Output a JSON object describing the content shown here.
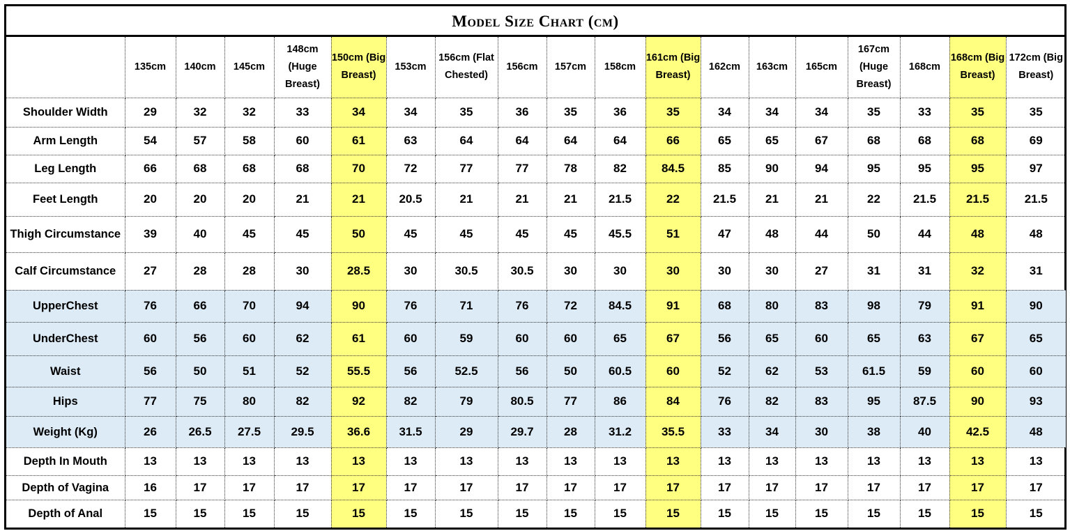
{
  "title": "Model Size Chart (cm)",
  "colors": {
    "highlight_column": "#FFFF80",
    "highlight_row": "#DDEBF7",
    "border": "#000000"
  },
  "highlighted_columns": [
    "150cm (Big Breast)",
    "161cm (Big Breast)",
    "168cm (Big Breast)"
  ],
  "columns": [
    {
      "label": "135cm",
      "highlight": false
    },
    {
      "label": "140cm",
      "highlight": false
    },
    {
      "label": "145cm",
      "highlight": false
    },
    {
      "label": "148cm (Huge Breast)",
      "highlight": false
    },
    {
      "label": "150cm (Big Breast)",
      "highlight": true
    },
    {
      "label": "153cm",
      "highlight": false
    },
    {
      "label": "156cm (Flat Chested)",
      "highlight": false
    },
    {
      "label": "156cm",
      "highlight": false
    },
    {
      "label": "157cm",
      "highlight": false
    },
    {
      "label": "158cm",
      "highlight": false
    },
    {
      "label": "161cm (Big Breast)",
      "highlight": true
    },
    {
      "label": "162cm",
      "highlight": false
    },
    {
      "label": "163cm",
      "highlight": false
    },
    {
      "label": "165cm",
      "highlight": false
    },
    {
      "label": "167cm (Huge Breast)",
      "highlight": false
    },
    {
      "label": "168cm",
      "highlight": false
    },
    {
      "label": "168cm (Big Breast)",
      "highlight": true
    },
    {
      "label": "172cm (Big Breast)",
      "highlight": false
    }
  ],
  "rows": [
    {
      "label": "Shoulder Width",
      "blue": false,
      "values": [
        "29",
        "32",
        "32",
        "33",
        "34",
        "34",
        "35",
        "36",
        "35",
        "36",
        "35",
        "34",
        "34",
        "34",
        "35",
        "33",
        "35",
        "35"
      ]
    },
    {
      "label": "Arm Length",
      "blue": false,
      "values": [
        "54",
        "57",
        "58",
        "60",
        "61",
        "63",
        "64",
        "64",
        "64",
        "64",
        "66",
        "65",
        "65",
        "67",
        "68",
        "68",
        "68",
        "69"
      ]
    },
    {
      "label": "Leg Length",
      "blue": false,
      "values": [
        "66",
        "68",
        "68",
        "68",
        "70",
        "72",
        "77",
        "77",
        "78",
        "82",
        "84.5",
        "85",
        "90",
        "94",
        "95",
        "95",
        "95",
        "97"
      ]
    },
    {
      "label": "Feet Length",
      "blue": false,
      "values": [
        "20",
        "20",
        "20",
        "21",
        "21",
        "20.5",
        "21",
        "21",
        "21",
        "21.5",
        "22",
        "21.5",
        "21",
        "21",
        "22",
        "21.5",
        "21.5",
        "21.5"
      ]
    },
    {
      "label": "Thigh Circumstance",
      "blue": false,
      "values": [
        "39",
        "40",
        "45",
        "45",
        "50",
        "45",
        "45",
        "45",
        "45",
        "45.5",
        "51",
        "47",
        "48",
        "44",
        "50",
        "44",
        "48",
        "48"
      ]
    },
    {
      "label": "Calf Circumstance",
      "blue": false,
      "values": [
        "27",
        "28",
        "28",
        "30",
        "28.5",
        "30",
        "30.5",
        "30.5",
        "30",
        "30",
        "30",
        "30",
        "30",
        "27",
        "31",
        "31",
        "32",
        "31"
      ]
    },
    {
      "label": "UpperChest",
      "blue": true,
      "values": [
        "76",
        "66",
        "70",
        "94",
        "90",
        "76",
        "71",
        "76",
        "72",
        "84.5",
        "91",
        "68",
        "80",
        "83",
        "98",
        "79",
        "91",
        "90"
      ]
    },
    {
      "label": "UnderChest",
      "blue": true,
      "values": [
        "60",
        "56",
        "60",
        "62",
        "61",
        "60",
        "59",
        "60",
        "60",
        "65",
        "67",
        "56",
        "65",
        "60",
        "65",
        "63",
        "67",
        "65"
      ]
    },
    {
      "label": "Waist",
      "blue": true,
      "values": [
        "56",
        "50",
        "51",
        "52",
        "55.5",
        "56",
        "52.5",
        "56",
        "50",
        "60.5",
        "60",
        "52",
        "62",
        "53",
        "61.5",
        "59",
        "60",
        "60"
      ]
    },
    {
      "label": "Hips",
      "blue": true,
      "values": [
        "77",
        "75",
        "80",
        "82",
        "92",
        "82",
        "79",
        "80.5",
        "77",
        "86",
        "84",
        "76",
        "82",
        "83",
        "95",
        "87.5",
        "90",
        "93"
      ]
    },
    {
      "label": "Weight (Kg)",
      "blue": true,
      "values": [
        "26",
        "26.5",
        "27.5",
        "29.5",
        "36.6",
        "31.5",
        "29",
        "29.7",
        "28",
        "31.2",
        "35.5",
        "33",
        "34",
        "30",
        "38",
        "40",
        "42.5",
        "48"
      ]
    },
    {
      "label": "Depth In Mouth",
      "blue": false,
      "values": [
        "13",
        "13",
        "13",
        "13",
        "13",
        "13",
        "13",
        "13",
        "13",
        "13",
        "13",
        "13",
        "13",
        "13",
        "13",
        "13",
        "13",
        "13"
      ]
    },
    {
      "label": "Depth of Vagina",
      "blue": false,
      "values": [
        "16",
        "17",
        "17",
        "17",
        "17",
        "17",
        "17",
        "17",
        "17",
        "17",
        "17",
        "17",
        "17",
        "17",
        "17",
        "17",
        "17",
        "17"
      ]
    },
    {
      "label": "Depth of Anal",
      "blue": false,
      "values": [
        "15",
        "15",
        "15",
        "15",
        "15",
        "15",
        "15",
        "15",
        "15",
        "15",
        "15",
        "15",
        "15",
        "15",
        "15",
        "15",
        "15",
        "15"
      ]
    }
  ]
}
